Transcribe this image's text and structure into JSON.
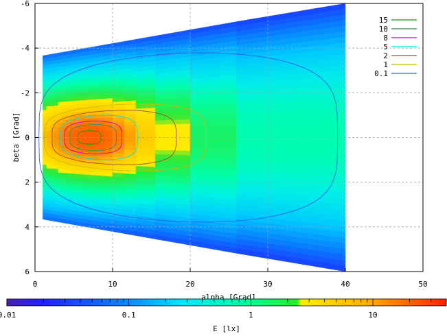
{
  "chart_data": {
    "type": "heatmap",
    "title": "",
    "xlabel": "alpha [Grad]",
    "ylabel": "beta [Grad]",
    "xlim": [
      0,
      50
    ],
    "ylim": [
      6,
      -6
    ],
    "x_ticks": [
      "0",
      "10",
      "20",
      "30",
      "40",
      "50"
    ],
    "y_ticks": [
      "-6",
      "-4",
      "-2",
      "0",
      "2",
      "4",
      "6"
    ],
    "grid": true,
    "legend_position": "top-right",
    "colorbar": {
      "label": "E [lx]",
      "scale": "log",
      "range": [
        0.01,
        40
      ],
      "tick_labels": [
        "0.01",
        "0.1",
        "1",
        "10"
      ]
    },
    "contours": [
      {
        "level": "15",
        "color": "#00a000"
      },
      {
        "level": "10",
        "color": "#2e8b57"
      },
      {
        "level": "8",
        "color": "#c000c0"
      },
      {
        "level": "5",
        "color": "#00e0e0"
      },
      {
        "level": "2",
        "color": "#a0522d"
      },
      {
        "level": "1",
        "color": "#c0c000"
      },
      {
        "level": "0.1",
        "color": "#3060e0"
      }
    ],
    "strips_alpha": [
      [
        1,
        1.5
      ],
      [
        1.5,
        2
      ],
      [
        2,
        2.5
      ],
      [
        2.5,
        3
      ],
      [
        3,
        3.5
      ],
      [
        3.5,
        4
      ],
      [
        4,
        4.5
      ],
      [
        4.5,
        5
      ],
      [
        5,
        5.5
      ],
      [
        5.5,
        6
      ],
      [
        6,
        7
      ],
      [
        7,
        8
      ],
      [
        8,
        9
      ],
      [
        9,
        10
      ],
      [
        10,
        11.5
      ],
      [
        11.5,
        13
      ],
      [
        13,
        15.5
      ],
      [
        15.5,
        20
      ],
      [
        20,
        26
      ],
      [
        26,
        40
      ]
    ]
  }
}
